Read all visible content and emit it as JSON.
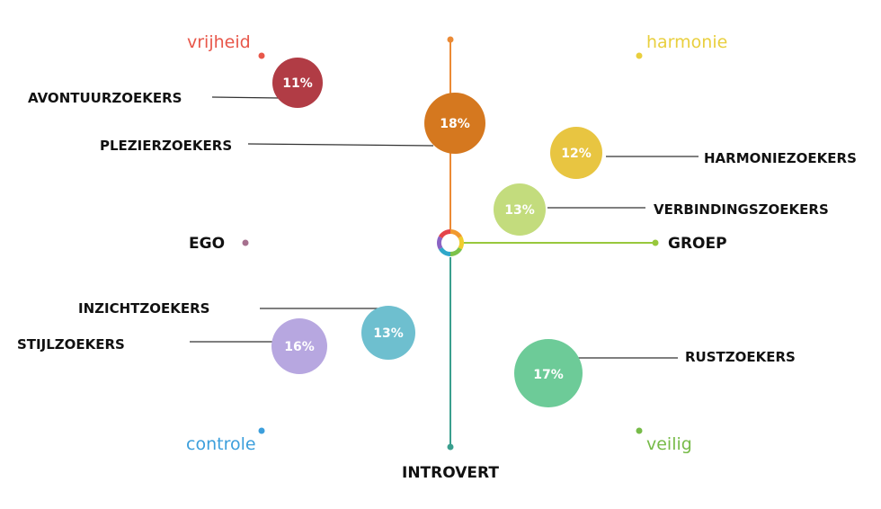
{
  "corners": {
    "top_left": "vrijheid",
    "top_right": "harmonie",
    "bottom_left": "controle",
    "bottom_right": "veilig"
  },
  "axes": {
    "left": "EGO",
    "right": "GROEP",
    "bottom": "INTROVERT"
  },
  "segments": [
    {
      "label": "AVONTUURZOEKERS",
      "value": "11%",
      "color": "#b13c45"
    },
    {
      "label": "PLEZIERZOEKERS",
      "value": "18%",
      "color": "#d5781f"
    },
    {
      "label": "HARMONIEZOEKERS",
      "value": "12%",
      "color": "#e8c541"
    },
    {
      "label": "VERBINDINGSZOEKERS",
      "value": "13%",
      "color": "#c3dc7d"
    },
    {
      "label": "INZICHTZOEKERS",
      "value": "13%",
      "color": "#6ebfcf"
    },
    {
      "label": "STIJLZOEKERS",
      "value": "16%",
      "color": "#b7a7e0"
    },
    {
      "label": "RUSTZOEKERS",
      "value": "17%",
      "color": "#6dcb98"
    }
  ],
  "colors": {
    "freedom_red": "#e8574a",
    "harmony_yellow": "#e9cf3e",
    "control_blue": "#3c9fdc",
    "safe_green": "#77bb49",
    "ego_purple": "#a6708e",
    "group_green": "#98c83c",
    "top_orange": "#eb8a35",
    "introvert_teal": "#3a9f8e"
  }
}
